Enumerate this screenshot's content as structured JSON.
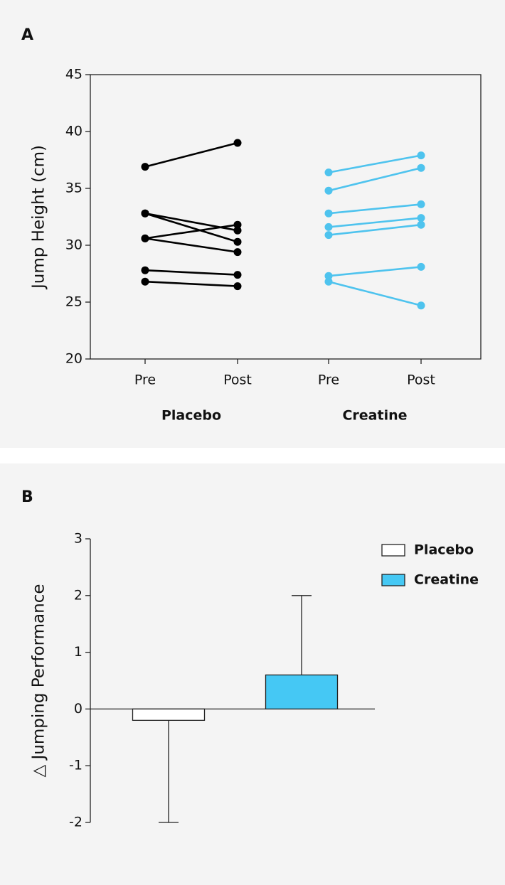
{
  "chart_data": [
    {
      "type": "paired-line",
      "panel_label": "A",
      "y_label": "Jump Height (cm)",
      "ylim": [
        20,
        45
      ],
      "yticks": [
        20,
        25,
        30,
        35,
        40,
        45
      ],
      "categories": [
        "Pre",
        "Post",
        "Pre",
        "Post"
      ],
      "groups": [
        {
          "name": "Placebo",
          "color": "#000000",
          "pre": [
            36.9,
            32.8,
            32.8,
            30.6,
            30.6,
            27.8,
            26.8
          ],
          "post": [
            39.0,
            31.3,
            30.3,
            31.8,
            29.4,
            27.4,
            26.4
          ]
        },
        {
          "name": "Creatine",
          "color": "#4ec3ee",
          "pre": [
            36.4,
            34.8,
            32.8,
            31.6,
            30.9,
            27.3,
            26.8
          ],
          "post": [
            37.9,
            36.8,
            33.6,
            32.4,
            31.8,
            28.1,
            24.7
          ]
        }
      ]
    },
    {
      "type": "bar",
      "panel_label": "B",
      "y_label": "△ Jumping Performance",
      "ylim": [
        -2,
        3
      ],
      "yticks": [
        -2,
        -1,
        0,
        1,
        2,
        3
      ],
      "legend": "top-right",
      "series": [
        {
          "name": "Placebo",
          "color": "#ffffff",
          "values": [
            -0.2
          ],
          "errors": [
            1.8
          ]
        },
        {
          "name": "Creatine",
          "color": "#45c8f4",
          "values": [
            0.6
          ],
          "errors": [
            1.4
          ]
        }
      ]
    }
  ]
}
